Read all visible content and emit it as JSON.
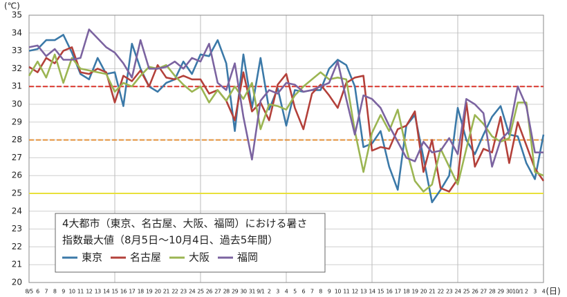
{
  "chart_data": {
    "type": "line",
    "title": [
      "4大都市（東京、名古屋、大阪、福岡）における暑さ",
      "指数最大値（8月5日～10月4日、過去5年間）"
    ],
    "y_unit": "(℃)",
    "x_unit": "(日)",
    "categories": [
      "8/5",
      "6",
      "7",
      "8",
      "9",
      "10",
      "11",
      "12",
      "13",
      "14",
      "15",
      "16",
      "17",
      "18",
      "19",
      "20",
      "21",
      "22",
      "23",
      "24",
      "25",
      "26",
      "27",
      "28",
      "29",
      "30",
      "31",
      "9/1",
      "2",
      "3",
      "4",
      "5",
      "6",
      "7",
      "8",
      "9",
      "10",
      "11",
      "12",
      "13",
      "14",
      "15",
      "16",
      "17",
      "18",
      "19",
      "20",
      "21",
      "22",
      "23",
      "24",
      "25",
      "26",
      "27",
      "28",
      "29",
      "30",
      "10/1",
      "2",
      "3",
      "4"
    ],
    "series": [
      {
        "name": "東京",
        "color": "#3b79a8",
        "values": [
          33.0,
          33.1,
          33.6,
          33.6,
          33.9,
          32.9,
          31.7,
          31.4,
          32.6,
          31.7,
          31.8,
          29.9,
          33.4,
          32.0,
          31.0,
          30.7,
          31.2,
          31.4,
          32.4,
          31.7,
          32.8,
          32.7,
          33.6,
          32.3,
          28.5,
          32.8,
          29.8,
          32.6,
          29.7,
          30.9,
          28.8,
          30.8,
          30.7,
          30.8,
          30.8,
          32.0,
          32.5,
          32.2,
          31.0,
          27.6,
          27.8,
          28.5,
          26.5,
          25.2,
          28.8,
          29.4,
          27.0,
          24.5,
          25.2,
          26.0,
          29.8,
          28.0,
          27.2,
          28.3,
          29.3,
          29.9,
          28.3,
          28.2,
          26.7,
          25.8,
          28.3
        ]
      },
      {
        "name": "名古屋",
        "color": "#b3403a",
        "values": [
          32.1,
          31.8,
          32.6,
          32.3,
          33.0,
          33.2,
          31.8,
          31.7,
          32.0,
          31.8,
          30.1,
          31.6,
          31.3,
          31.9,
          31.0,
          32.2,
          31.5,
          31.4,
          31.6,
          31.4,
          31.4,
          30.6,
          30.8,
          30.2,
          29.1,
          31.8,
          29.6,
          30.1,
          29.1,
          31.1,
          31.7,
          29.8,
          28.6,
          30.6,
          31.1,
          30.5,
          29.8,
          31.2,
          31.5,
          31.6,
          27.4,
          27.6,
          27.5,
          28.6,
          28.8,
          29.6,
          26.2,
          28.0,
          25.3,
          25.1,
          25.8,
          30.1,
          26.5,
          27.5,
          27.3,
          29.3,
          26.7,
          29.0,
          27.7,
          26.4,
          25.7
        ]
      },
      {
        "name": "大阪",
        "color": "#9bb552",
        "values": [
          31.6,
          32.4,
          31.5,
          32.8,
          31.2,
          32.6,
          32.0,
          31.9,
          31.8,
          31.7,
          30.7,
          31.2,
          31.0,
          31.6,
          32.1,
          32.0,
          32.2,
          31.6,
          31.1,
          30.7,
          31.0,
          30.1,
          30.8,
          30.2,
          31.0,
          30.3,
          31.2,
          28.6,
          30.0,
          29.9,
          29.7,
          30.5,
          31.0,
          31.4,
          31.8,
          31.4,
          31.5,
          31.4,
          28.5,
          26.2,
          28.4,
          29.4,
          28.5,
          29.7,
          27.5,
          25.7,
          25.1,
          25.5,
          27.5,
          26.5,
          25.5,
          27.5,
          29.4,
          28.9,
          28.2,
          27.9,
          28.1,
          30.1,
          30.1,
          26.2,
          26.0
        ]
      },
      {
        "name": "福岡",
        "color": "#7b63a0",
        "values": [
          33.2,
          33.3,
          32.7,
          33.1,
          32.5,
          32.5,
          32.6,
          34.2,
          33.7,
          33.2,
          32.9,
          32.3,
          31.5,
          33.6,
          32.0,
          32.0,
          32.1,
          32.4,
          32.0,
          32.6,
          32.4,
          33.4,
          31.2,
          30.8,
          32.3,
          29.3,
          26.9,
          30.2,
          30.8,
          30.6,
          31.2,
          31.1,
          30.7,
          30.8,
          31.0,
          31.2,
          32.4,
          30.3,
          28.3,
          30.5,
          30.3,
          29.8,
          28.8,
          27.9,
          27.0,
          26.8,
          27.9,
          27.3,
          27.4,
          28.1,
          27.2,
          30.3,
          30.0,
          29.5,
          26.5,
          28.0,
          28.5,
          31.0,
          29.9,
          27.3,
          27.3
        ]
      }
    ],
    "reference_lines": [
      {
        "value": 31,
        "color": "#d9342b",
        "dashed": true
      },
      {
        "value": 28,
        "color": "#e3913a",
        "dashed": true
      },
      {
        "value": 25,
        "color": "#e8e03a",
        "dashed": false
      }
    ],
    "ylim": [
      20,
      35
    ],
    "yticks": [
      20,
      21,
      22,
      23,
      24,
      25,
      26,
      27,
      28,
      29,
      30,
      31,
      32,
      33,
      34,
      35
    ],
    "grid": true
  }
}
